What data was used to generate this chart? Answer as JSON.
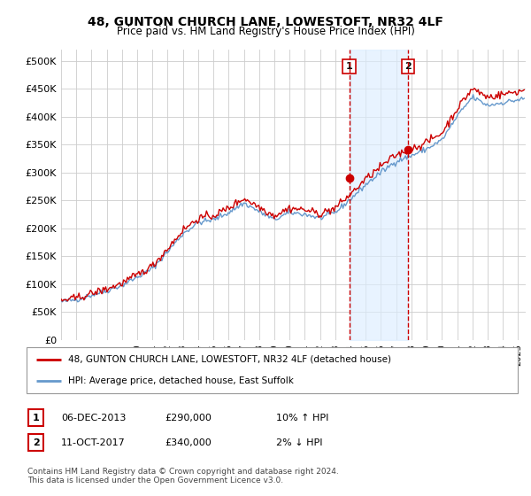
{
  "title": "48, GUNTON CHURCH LANE, LOWESTOFT, NR32 4LF",
  "subtitle": "Price paid vs. HM Land Registry's House Price Index (HPI)",
  "ylim": [
    0,
    520000
  ],
  "yticks": [
    0,
    50000,
    100000,
    150000,
    200000,
    250000,
    300000,
    350000,
    400000,
    450000,
    500000
  ],
  "xlim_start": 1995.0,
  "xlim_end": 2025.5,
  "transaction1_date": 2013.92,
  "transaction1_price": 290000,
  "transaction1_label": "1",
  "transaction2_date": 2017.78,
  "transaction2_price": 340000,
  "transaction2_label": "2",
  "legend_line1": "48, GUNTON CHURCH LANE, LOWESTOFT, NR32 4LF (detached house)",
  "legend_line2": "HPI: Average price, detached house, East Suffolk",
  "table_row1_date": "06-DEC-2013",
  "table_row1_price": "£290,000",
  "table_row1_hpi": "10% ↑ HPI",
  "table_row2_date": "11-OCT-2017",
  "table_row2_price": "£340,000",
  "table_row2_hpi": "2% ↓ HPI",
  "footnote": "Contains HM Land Registry data © Crown copyright and database right 2024.\nThis data is licensed under the Open Government Licence v3.0.",
  "red_color": "#cc0000",
  "blue_color": "#6699cc",
  "shade_color": "#ddeeff",
  "grid_color": "#cccccc",
  "background_color": "#ffffff",
  "hpi_base_years": [
    1995,
    1996,
    1997,
    1998,
    1999,
    2000,
    2001,
    2002,
    2003,
    2004,
    2005,
    2006,
    2007,
    2008,
    2009,
    2010,
    2011,
    2012,
    2013,
    2014,
    2015,
    2016,
    2017,
    2018,
    2019,
    2020,
    2021,
    2022,
    2023,
    2024,
    2025,
    2025.5
  ],
  "hpi_base_vals": [
    68000,
    72000,
    80000,
    88000,
    98000,
    112000,
    128000,
    158000,
    190000,
    210000,
    215000,
    228000,
    245000,
    230000,
    215000,
    228000,
    225000,
    218000,
    228000,
    252000,
    278000,
    300000,
    320000,
    330000,
    342000,
    358000,
    400000,
    435000,
    420000,
    425000,
    430000,
    432000
  ]
}
